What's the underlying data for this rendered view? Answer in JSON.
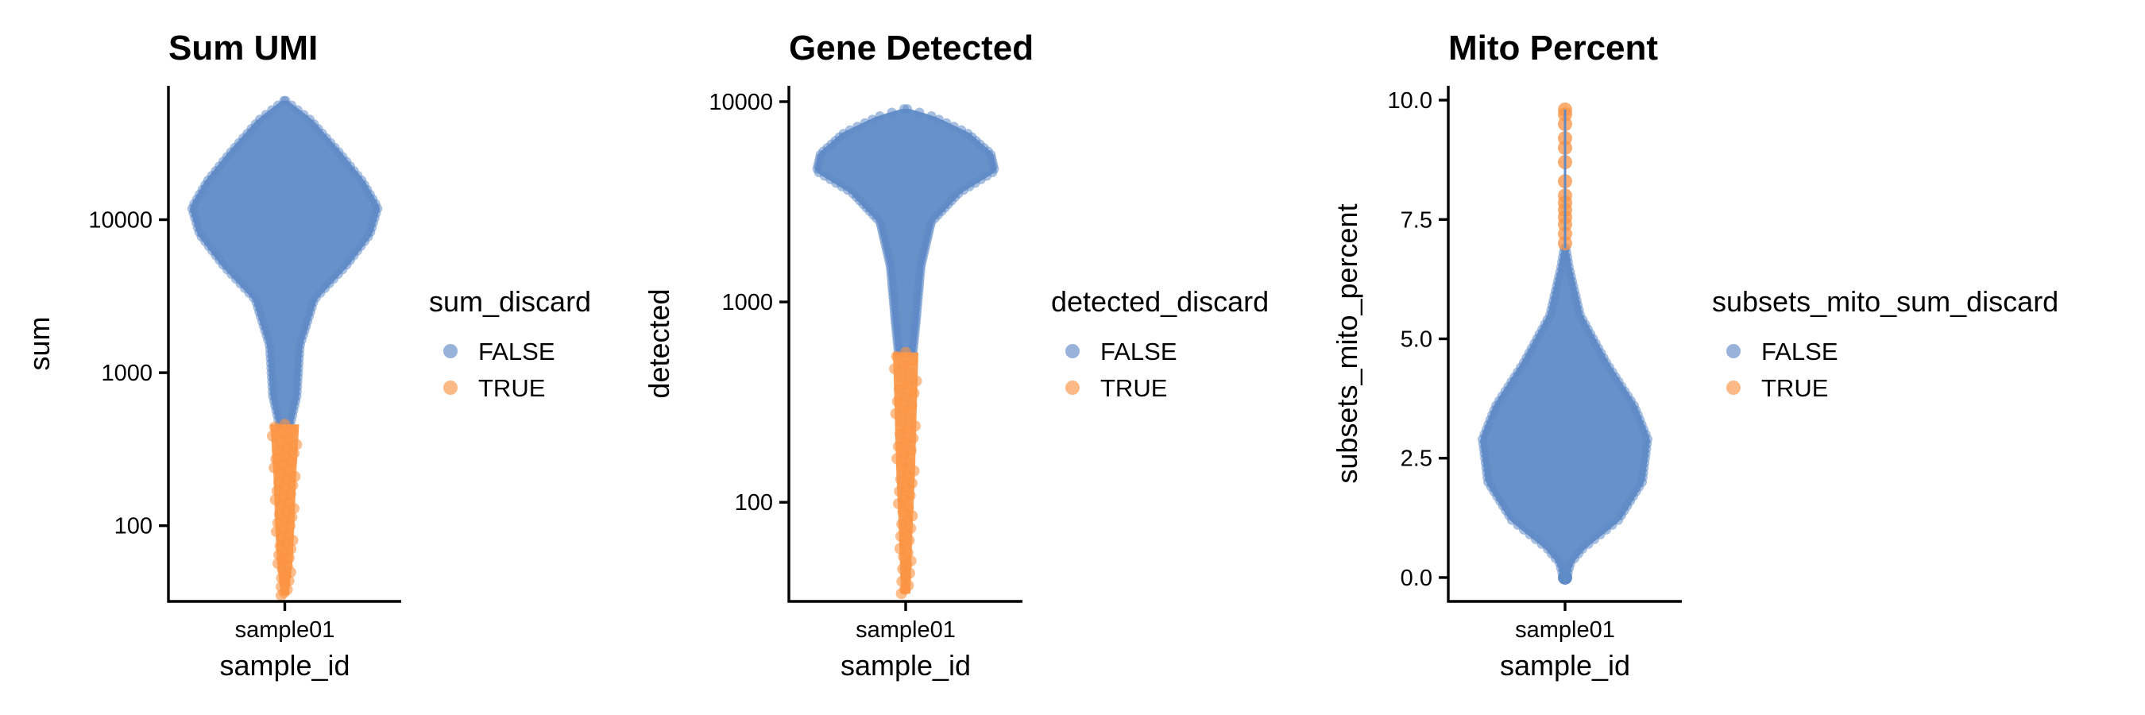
{
  "chart_data": [
    {
      "type": "violin_scatter",
      "title": "Sum UMI",
      "xlabel": "sample_id",
      "ylabel": "sum",
      "categories": [
        "sample01"
      ],
      "y_scale": "log10",
      "ylim": [
        32,
        75000
      ],
      "yticks": [
        100,
        1000,
        10000
      ],
      "ytick_labels": [
        "100",
        "1000",
        "10000"
      ],
      "legend": {
        "title": "sum_discard",
        "entries": [
          "FALSE",
          "TRUE"
        ],
        "placement": "right"
      },
      "colors": {
        "FALSE": "#5f8bc6",
        "TRUE": "#fb9343"
      },
      "series": [
        {
          "name": "FALSE",
          "y_range": [
            460,
            60000
          ],
          "distribution_peak": 12000
        },
        {
          "name": "TRUE",
          "y_range": [
            35,
            460
          ]
        }
      ]
    },
    {
      "type": "violin_scatter",
      "title": "Gene Detected",
      "xlabel": "sample_id",
      "ylabel": "detected",
      "categories": [
        "sample01"
      ],
      "y_scale": "log10",
      "ylim": [
        32,
        12000
      ],
      "yticks": [
        100,
        1000,
        10000
      ],
      "ytick_labels": [
        "100",
        "1000",
        "10000"
      ],
      "legend": {
        "title": "detected_discard",
        "entries": [
          "FALSE",
          "TRUE"
        ],
        "placement": "right"
      },
      "colors": {
        "FALSE": "#5f8bc6",
        "TRUE": "#fb9343"
      },
      "series": [
        {
          "name": "FALSE",
          "y_range": [
            560,
            9200
          ],
          "distribution_peak": 4500
        },
        {
          "name": "TRUE",
          "y_range": [
            35,
            560
          ]
        }
      ]
    },
    {
      "type": "violin_scatter",
      "title": "Mito Percent",
      "xlabel": "sample_id",
      "ylabel": "subsets_mito_percent",
      "categories": [
        "sample01"
      ],
      "y_scale": "linear",
      "ylim": [
        -0.5,
        10.3
      ],
      "yticks": [
        0,
        2.5,
        5,
        7.5,
        10
      ],
      "ytick_labels": [
        "0.0",
        "2.5",
        "5.0",
        "7.5",
        "10.0"
      ],
      "legend": {
        "title": "subsets_mito_sum_discard",
        "entries": [
          "FALSE",
          "TRUE"
        ],
        "placement": "right"
      },
      "colors": {
        "FALSE": "#5f8bc6",
        "TRUE": "#fb9343"
      },
      "series": [
        {
          "name": "FALSE",
          "y_range": [
            0,
            6.9
          ],
          "distribution_peak": 2.9
        },
        {
          "name": "TRUE",
          "y_range": [
            6.9,
            9.8
          ],
          "points": [
            7.0,
            7.2,
            7.4,
            7.55,
            7.7,
            7.85,
            8.0,
            8.3,
            8.7,
            9.0,
            9.2,
            9.5,
            9.7,
            9.8
          ]
        }
      ]
    }
  ]
}
